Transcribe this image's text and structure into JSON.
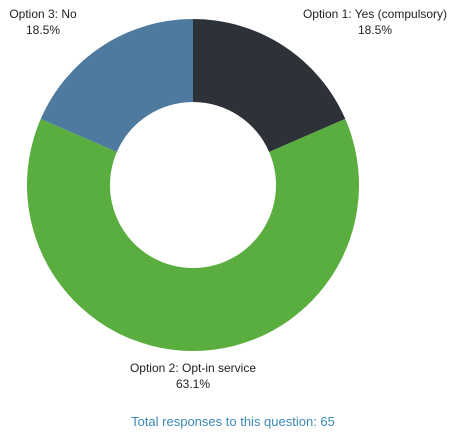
{
  "chart_data": {
    "type": "pie",
    "donut": true,
    "categories": [
      "Option 1: Yes (compulsory)",
      "Option 2: Opt-in service",
      "Option 3: No"
    ],
    "values": [
      18.5,
      63.1,
      18.5
    ],
    "value_labels": [
      "18.5%",
      "63.1%",
      "18.5%"
    ],
    "colors": [
      "#2d3138",
      "#5aae3f",
      "#4e7aa0"
    ],
    "unit": "%"
  },
  "footer": {
    "text": "Total responses to this question: 65"
  }
}
